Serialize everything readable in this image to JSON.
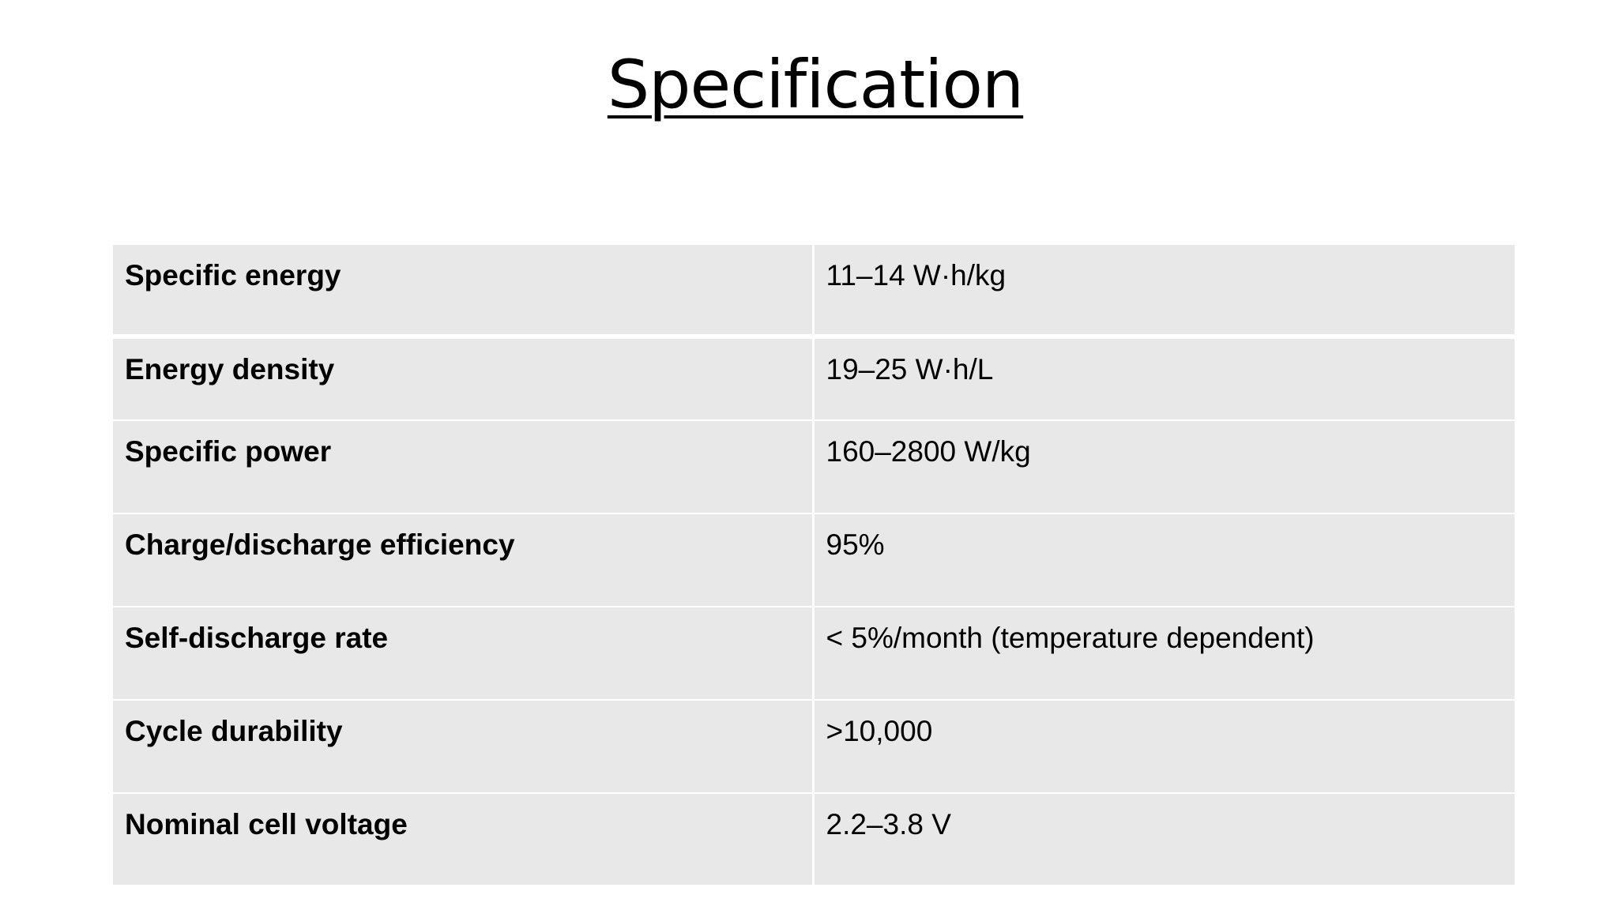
{
  "slide": {
    "title": "Specification",
    "rows": [
      {
        "label": "Specific energy",
        "value": "11–14 W·h/kg"
      },
      {
        "label": "Energy density",
        "value": "19–25 W·h/L"
      },
      {
        "label": "Specific power",
        "value": "160–2800 W/kg"
      },
      {
        "label": "Charge/discharge efficiency",
        "value": "95%"
      },
      {
        "label": "Self-discharge rate",
        "value": "< 5%/month (temperature dependent)"
      },
      {
        "label": "Cycle durability",
        "value": ">10,000"
      },
      {
        "label": "Nominal cell voltage",
        "value": "2.2–3.8 V"
      }
    ]
  }
}
